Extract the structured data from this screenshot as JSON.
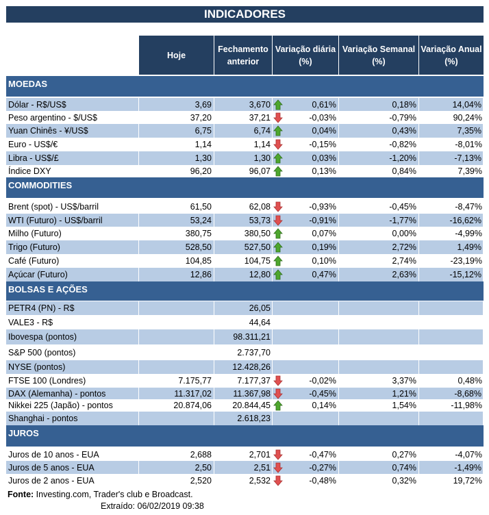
{
  "title": "INDICADORES",
  "headers": [
    "Hoje",
    "Fechamento anterior",
    "Variação diária (%)",
    "Variação Semanal (%)",
    "Variação Anual (%)"
  ],
  "colors": {
    "header": "#243f60",
    "section": "#366092",
    "stripe": "#b8cce4",
    "up": "#4ea72e",
    "down": "#e05050"
  },
  "sections": [
    {
      "name": "MOEDAS",
      "rows": [
        {
          "label": "Dólar - R$/US$",
          "hoje": "3,69",
          "fech": "3,670",
          "dir": "up",
          "d": "0,61%",
          "s": "0,18%",
          "a": "14,04%"
        },
        {
          "label": "Peso argentino - $/US$",
          "hoje": "37,20",
          "fech": "37,21",
          "dir": "down",
          "d": "-0,03%",
          "s": "-0,79%",
          "a": "90,24%"
        },
        {
          "label": "Yuan Chinês - ¥/US$",
          "hoje": "6,75",
          "fech": "6,74",
          "dir": "up",
          "d": "0,04%",
          "s": "0,43%",
          "a": "7,35%"
        },
        {
          "label": "Euro - US$/€",
          "hoje": "1,14",
          "fech": "1,14",
          "dir": "down",
          "d": "-0,15%",
          "s": "-0,82%",
          "a": "-8,01%"
        },
        {
          "label": "Libra - US$/£",
          "hoje": "1,30",
          "fech": "1,30",
          "dir": "up",
          "d": "0,03%",
          "s": "-1,20%",
          "a": "-7,13%"
        },
        {
          "label": "Índice DXY",
          "hoje": "96,20",
          "fech": "96,07",
          "dir": "up",
          "d": "0,13%",
          "s": "0,84%",
          "a": "7,39%"
        }
      ]
    },
    {
      "name": "COMMODITIES",
      "rows": [
        {
          "label": "Brent (spot) - US$/barril",
          "hoje": "61,50",
          "fech": "62,08",
          "dir": "down",
          "d": "-0,93%",
          "s": "-0,45%",
          "a": "-8,47%"
        },
        {
          "label": "WTI (Futuro) - US$/barril",
          "hoje": "53,24",
          "fech": "53,73",
          "dir": "down",
          "d": "-0,91%",
          "s": "-1,77%",
          "a": "-16,62%"
        },
        {
          "label": "Milho (Futuro)",
          "hoje": "380,75",
          "fech": "380,50",
          "dir": "up",
          "d": "0,07%",
          "s": "0,00%",
          "a": "-4,99%"
        },
        {
          "label": "Trigo (Futuro)",
          "hoje": "528,50",
          "fech": "527,50",
          "dir": "up",
          "d": "0,19%",
          "s": "2,72%",
          "a": "1,49%"
        },
        {
          "label": "Café (Futuro)",
          "hoje": "104,85",
          "fech": "104,75",
          "dir": "up",
          "d": "0,10%",
          "s": "2,74%",
          "a": "-23,19%"
        },
        {
          "label": "Açúcar (Futuro)",
          "hoje": "12,86",
          "fech": "12,80",
          "dir": "up",
          "d": "0,47%",
          "s": "2,63%",
          "a": "-15,12%"
        }
      ]
    },
    {
      "name": "BOLSAS E AÇÕES",
      "rows": [
        {
          "label": "PETR4 (PN) - R$",
          "hoje": "",
          "fech": "26,05",
          "dir": null,
          "d": "",
          "s": "",
          "a": ""
        },
        {
          "label": "VALE3 - R$",
          "hoje": "",
          "fech": "44,64",
          "dir": null,
          "d": "",
          "s": "",
          "a": ""
        },
        {
          "label": "Ibovespa (pontos)",
          "hoje": "",
          "fech": "98.311,21",
          "dir": null,
          "d": "",
          "s": "",
          "a": ""
        },
        {
          "label": "S&P 500 (pontos)",
          "hoje": "",
          "fech": "2.737,70",
          "dir": null,
          "d": "",
          "s": "",
          "a": ""
        },
        {
          "label": "NYSE (pontos)",
          "hoje": "",
          "fech": "12.428,26",
          "dir": null,
          "d": "",
          "s": "",
          "a": ""
        },
        {
          "label": "FTSE 100 (Londres)",
          "hoje": "7.175,77",
          "fech": "7.177,37",
          "dir": "down",
          "d": "-0,02%",
          "s": "3,37%",
          "a": "0,48%"
        },
        {
          "label": "DAX (Alemanha) - pontos",
          "hoje": "11.317,02",
          "fech": "11.367,98",
          "dir": "down",
          "d": "-0,45%",
          "s": "1,21%",
          "a": "-8,68%"
        },
        {
          "label": "Nikkei 225 (Japão) - pontos",
          "hoje": "20.874,06",
          "fech": "20.844,45",
          "dir": "up",
          "d": "0,14%",
          "s": "1,54%",
          "a": "-11,98%"
        },
        {
          "label": "Shanghai - pontos",
          "hoje": "",
          "fech": "2.618,23",
          "dir": null,
          "d": "",
          "s": "",
          "a": ""
        }
      ]
    },
    {
      "name": "JUROS",
      "rows": [
        {
          "label": "Juros de 10 anos - EUA",
          "hoje": "2,688",
          "fech": "2,701",
          "dir": "down",
          "d": "-0,47%",
          "s": "0,27%",
          "a": "-4,07%"
        },
        {
          "label": "Juros de 5 anos - EUA",
          "hoje": "2,50",
          "fech": "2,51",
          "dir": "down",
          "d": "-0,27%",
          "s": "0,74%",
          "a": "-1,49%"
        },
        {
          "label": "Juros de 2 anos - EUA",
          "hoje": "2,520",
          "fech": "2,532",
          "dir": "down",
          "d": "-0,48%",
          "s": "0,32%",
          "a": "19,72%"
        }
      ]
    }
  ],
  "footer": {
    "source_label": "Fonte:",
    "source_text": " Investing.com, Trader's club e Broadcast.",
    "extracted": "Extraído:  06/02/2019 09:38"
  }
}
